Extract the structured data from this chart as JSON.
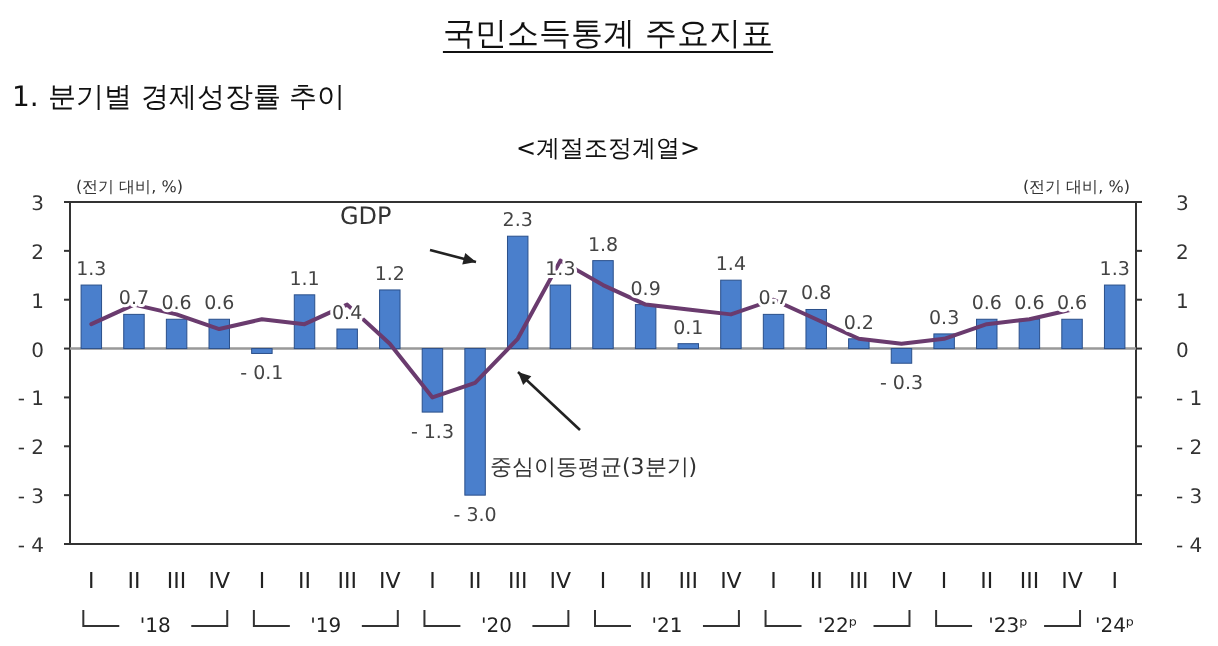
{
  "chart_data": {
    "type": "bar",
    "title": "국민소득통계 주요지표",
    "subtitle": "1. 분기별 경제성장률 추이",
    "annotations": [
      "<계절조정계열>",
      "'18",
      "'19",
      "'20",
      "'21",
      "'22ᵖ",
      "'23ᵖ",
      "'24ᵖ"
    ],
    "ylabel": "(전기 대비, %)",
    "y2label": "(전기 대비, %)",
    "categories": [
      "I",
      "II",
      "III",
      "IV",
      "I",
      "II",
      "III",
      "IV",
      "I",
      "II",
      "III",
      "IV",
      "I",
      "II",
      "III",
      "IV",
      "I",
      "II",
      "III",
      "IV",
      "I",
      "II",
      "III",
      "IV",
      "I"
    ],
    "series": [
      {
        "name": "GDP",
        "color": "#4a7fcc",
        "values": [
          1.3,
          0.7,
          0.6,
          0.6,
          -0.1,
          1.1,
          0.4,
          1.2,
          -1.3,
          -3.0,
          2.3,
          1.3,
          1.8,
          0.9,
          0.1,
          1.4,
          0.7,
          0.8,
          0.2,
          -0.3,
          0.3,
          0.6,
          0.6,
          0.6,
          1.3
        ],
        "value_labels": [
          "1.3",
          "0.7",
          "0.6",
          "0.6",
          "- 0.1",
          "1.1",
          "0.4",
          "1.2",
          "- 1.3",
          "- 3.0",
          "2.3",
          "1.3",
          "1.8",
          "0.9",
          "0.1",
          "1.4",
          "0.7",
          "0.8",
          "0.2",
          "- 0.3",
          "0.3",
          "0.6",
          "0.6",
          "0.6",
          "1.3"
        ]
      },
      {
        "name": "중심이동평균(3분기)",
        "type": "line",
        "color": "#6a3b6e",
        "values": [
          0.5,
          0.9,
          0.7,
          0.4,
          0.6,
          0.5,
          0.9,
          0.1,
          -1.0,
          -0.7,
          0.2,
          1.8,
          1.3,
          0.9,
          0.8,
          0.7,
          1.0,
          0.6,
          0.2,
          0.1,
          0.2,
          0.5,
          0.6,
          0.8,
          null
        ]
      }
    ],
    "ylim": [
      -4,
      3
    ],
    "yticks": [
      3,
      2,
      1,
      0,
      {
        "value": -1,
        "label": "- 1"
      },
      {
        "value": -2,
        "label": "- 2"
      },
      {
        "value": -3,
        "label": "- 3"
      },
      {
        "value": -4,
        "label": "- 4"
      }
    ],
    "y2lim": [
      -4,
      3
    ],
    "y2ticks": [
      3,
      2,
      1,
      0,
      {
        "value": -1,
        "label": "- 1"
      },
      {
        "value": -2,
        "label": "- 2"
      },
      {
        "value": -3,
        "label": "- 3"
      },
      {
        "value": -4,
        "label": "- 4"
      }
    ],
    "grid": false,
    "ref_lines": [
      {
        "axis": "y",
        "value": 0,
        "color": "#999999"
      }
    ],
    "legend": false,
    "line_style": "solid",
    "marker": "none"
  }
}
